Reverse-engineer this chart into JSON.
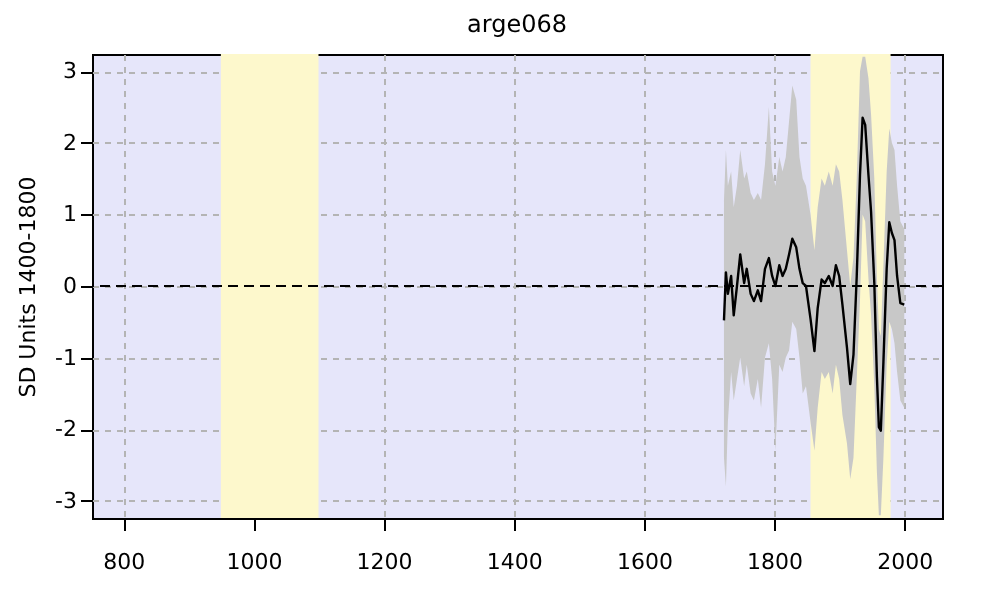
{
  "chart_data": {
    "type": "line",
    "title": "arge068",
    "ylabel": "SD Units 1400-1800",
    "x": [
      1723,
      1726,
      1729,
      1734,
      1738,
      1743,
      1748,
      1754,
      1758,
      1764,
      1769,
      1775,
      1780,
      1786,
      1792,
      1797,
      1802,
      1808,
      1813,
      1818,
      1823,
      1828,
      1834,
      1839,
      1844,
      1849,
      1856,
      1862,
      1867,
      1873,
      1878,
      1884,
      1890,
      1895,
      1900,
      1905,
      1912,
      1917,
      1922,
      1927,
      1932,
      1936,
      1940,
      1945,
      1949,
      1954,
      1958,
      1961,
      1964,
      1968,
      1973,
      1977,
      1981,
      1985,
      1989,
      1994,
      2000
    ],
    "series": [
      {
        "color": "#000000",
        "values": [
          -0.48,
          0.19,
          -0.11,
          0.14,
          -0.41,
          0,
          0.44,
          0.04,
          0.24,
          -0.11,
          -0.21,
          -0.06,
          -0.21,
          0.24,
          0.39,
          0.14,
          0,
          0.29,
          0.14,
          0.24,
          0.44,
          0.66,
          0.54,
          0.24,
          0.04,
          0,
          -0.46,
          -0.91,
          -0.31,
          0.09,
          0.04,
          0.14,
          0,
          0.29,
          0.14,
          -0.26,
          -0.86,
          -1.37,
          -0.96,
          0.14,
          1.55,
          2.35,
          2.25,
          1.55,
          1.04,
          0.04,
          -1.27,
          -1.97,
          -2.02,
          -1.06,
          0.24,
          0.89,
          0.74,
          0.64,
          0.14,
          -0.24,
          -0.26
        ],
        "lower": [
          -2.4,
          -2.8,
          -1.9,
          -1.2,
          -1.6,
          -1.3,
          -1.0,
          -1.4,
          -1.1,
          -1.5,
          -1.6,
          -1.3,
          -1.7,
          -1.0,
          -0.8,
          -1.3,
          -2.3,
          -1.1,
          -1.2,
          -1.0,
          -0.9,
          -0.5,
          -0.6,
          -1.0,
          -1.5,
          -1.4,
          -1.9,
          -2.3,
          -1.7,
          -1.2,
          -1.3,
          -1.2,
          -1.5,
          -1.1,
          -1.3,
          -1.8,
          -2.2,
          -2.7,
          -2.4,
          -1.3,
          -0.2,
          1.0,
          0.9,
          0.1,
          -0.4,
          -1.4,
          -2.6,
          -3.2,
          -3.2,
          -2.4,
          -1.1,
          -0.5,
          -0.6,
          -0.8,
          -1.2,
          -1.6,
          -1.7
        ],
        "upper": [
          1.2,
          1.9,
          1.4,
          1.6,
          1.1,
          1.4,
          1.9,
          1.5,
          1.6,
          1.3,
          1.2,
          1.3,
          1.2,
          1.7,
          2.5,
          1.6,
          1.4,
          1.8,
          1.6,
          1.8,
          2.3,
          2.8,
          2.6,
          1.8,
          1.5,
          1.4,
          1.0,
          0.5,
          1.1,
          1.5,
          1.4,
          1.6,
          1.4,
          1.7,
          1.6,
          1.2,
          0.5,
          0.0,
          0.4,
          1.5,
          3.0,
          3.2,
          3.2,
          2.9,
          2.4,
          1.5,
          0.1,
          -0.6,
          -0.7,
          0.3,
          1.6,
          2.2,
          2.0,
          1.9,
          1.4,
          0.9,
          0.8
        ]
      }
    ],
    "xlim": [
      752,
      2058
    ],
    "xticks": [
      800,
      1000,
      1200,
      1400,
      1600,
      1800,
      2000
    ],
    "ylim": [
      -3.24,
      3.24
    ],
    "yticks": [
      -3,
      -2,
      -1,
      0,
      1,
      2,
      3
    ],
    "grid": true,
    "bands": [
      {
        "axis": "x",
        "from": 950,
        "to": 1100,
        "color": "#fdf8cc"
      },
      {
        "axis": "x",
        "from": 1856,
        "to": 1979,
        "color": "#fdf8cc"
      }
    ],
    "ref_lines": [
      {
        "axis": "y",
        "value": 0,
        "line_style": "dashed",
        "color": "#000000"
      }
    ]
  }
}
